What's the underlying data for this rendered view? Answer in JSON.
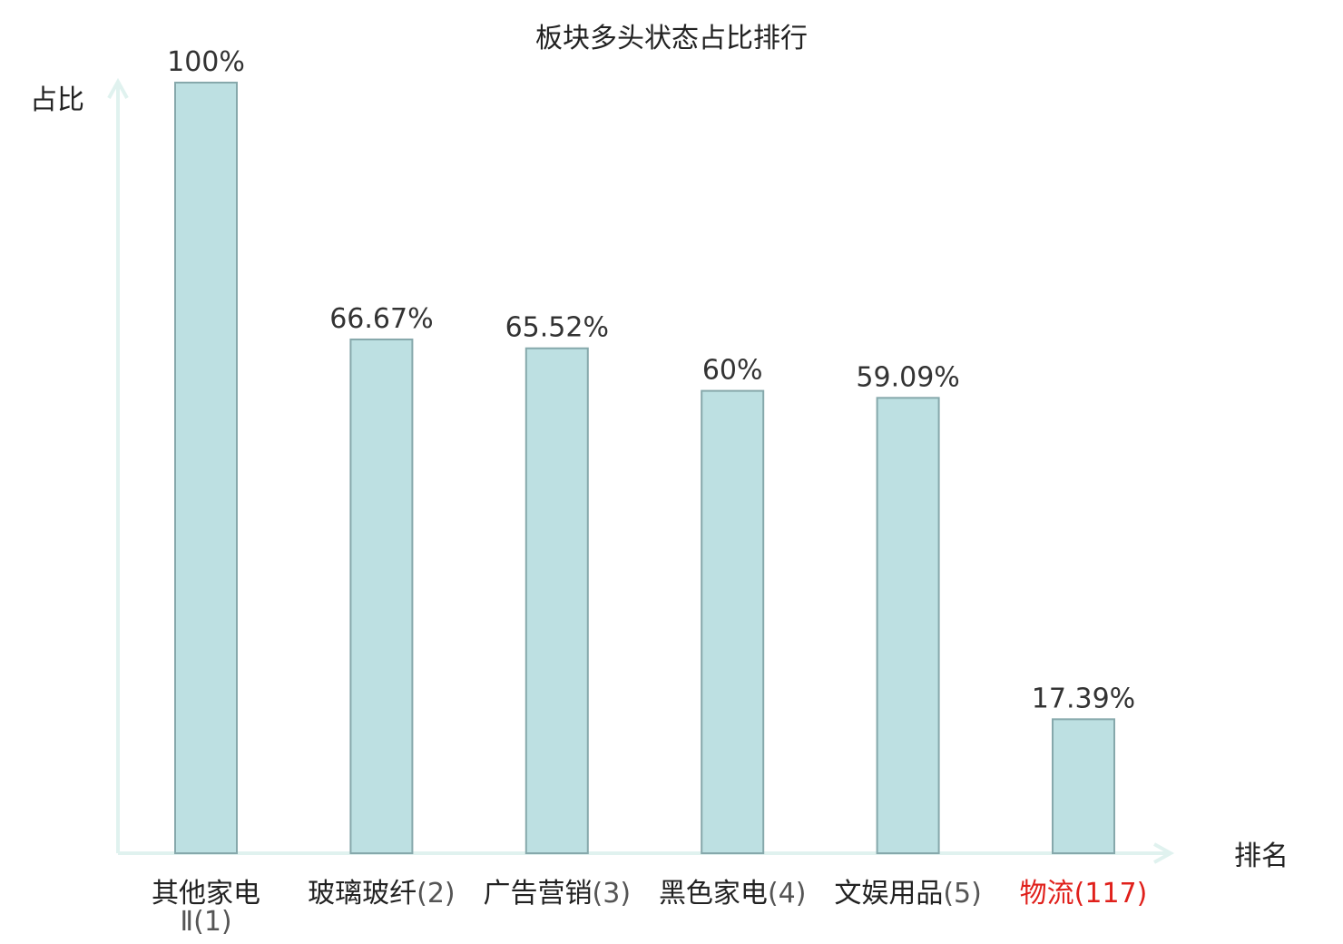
{
  "chart_data": {
    "type": "bar",
    "title": "板块多头状态占比排行",
    "ylabel": "占比",
    "xlabel": "排名",
    "ylim": [
      0,
      100
    ],
    "grid": false,
    "categories": [
      {
        "name": "其他家电Ⅱ",
        "rank": "(1)",
        "highlight": false
      },
      {
        "name": "玻璃玻纤",
        "rank": "(2)",
        "highlight": false
      },
      {
        "name": "广告营销",
        "rank": "(3)",
        "highlight": false
      },
      {
        "name": "黑色家电",
        "rank": "(4)",
        "highlight": false
      },
      {
        "name": "文娱用品",
        "rank": "(5)",
        "highlight": false
      },
      {
        "name": "物流",
        "rank": "(117)",
        "highlight": true
      }
    ],
    "values": [
      100,
      66.67,
      65.52,
      60,
      59.09,
      17.39
    ],
    "value_labels": [
      "100%",
      "66.67%",
      "65.52%",
      "60%",
      "59.09%",
      "17.39%"
    ]
  },
  "colors": {
    "bar_fill": "#bde0e2",
    "bar_stroke": "#86a8ab",
    "axis": "#e0f2ef",
    "text": "#222222",
    "rank_text": "#555555",
    "highlight": "#e0201b"
  }
}
